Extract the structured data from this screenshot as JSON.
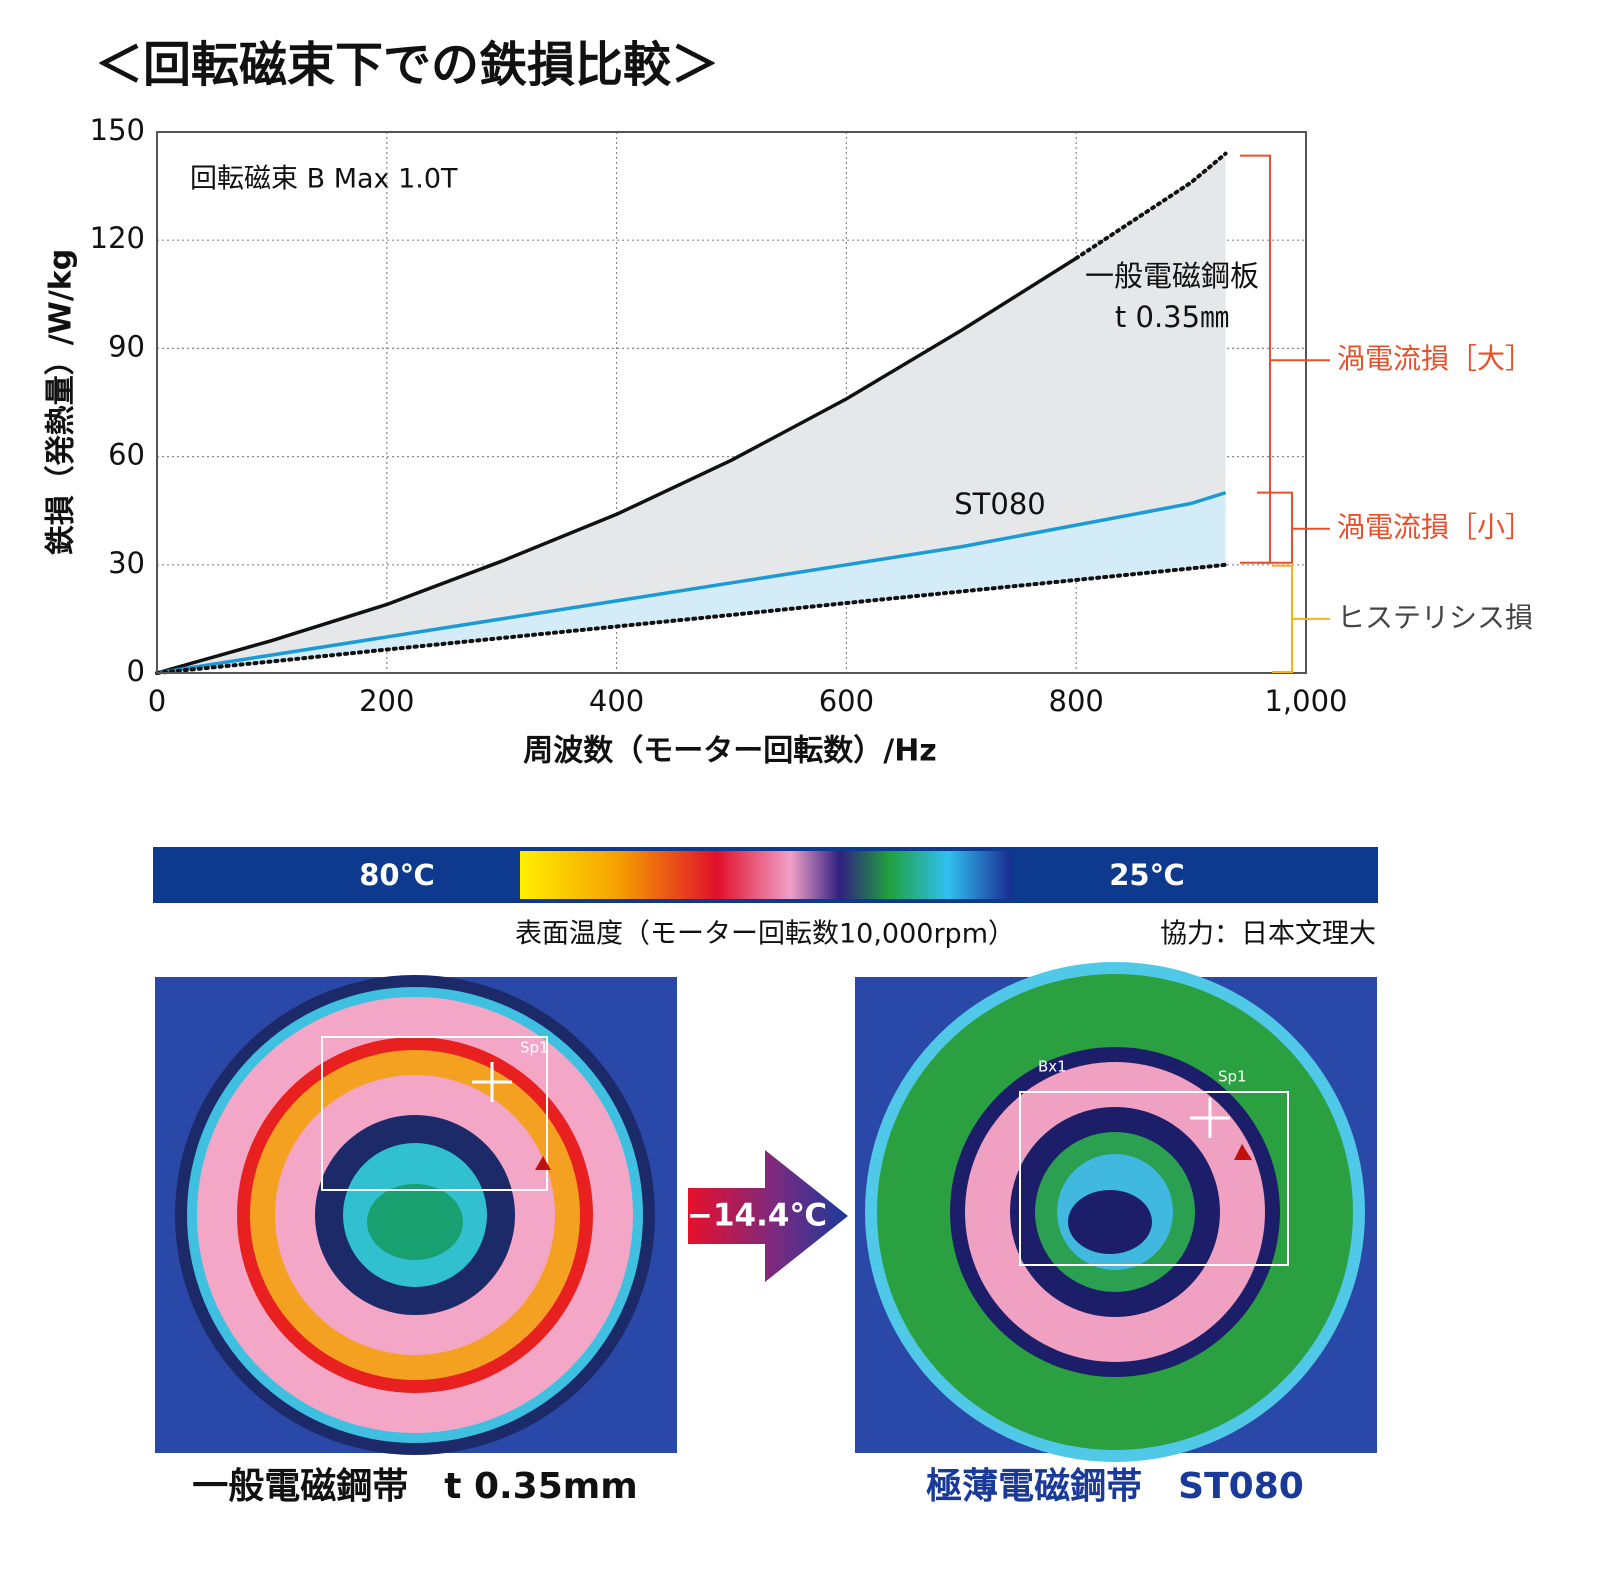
{
  "chart_data": {
    "type": "line",
    "title": "＜回転磁束下での鉄損比較＞",
    "x_label": "周波数（モーター回転数）/Hz",
    "y_label": "鉄損（発熱量）/W/kg",
    "condition": "回転磁束 B Max 1.0T",
    "x": [
      0,
      100,
      200,
      300,
      400,
      500,
      600,
      700,
      800,
      900,
      930
    ],
    "series": [
      {
        "name": "一般電磁鋼板",
        "thickness": "t 0.35㎜",
        "color": "#111111",
        "dashed_from": 800,
        "values": [
          0,
          9,
          19,
          31,
          44,
          59,
          76,
          95,
          115,
          136,
          144
        ]
      },
      {
        "name": "ST080",
        "color": "#1a9ad6",
        "values": [
          0,
          5,
          10,
          15,
          20,
          25,
          30,
          35,
          41,
          47,
          50
        ]
      },
      {
        "name": "ヒステリシス損",
        "color": "#111111",
        "dashed_from": 0,
        "values": [
          0,
          3.2,
          6.5,
          9.7,
          12.9,
          16.1,
          19.4,
          22.6,
          25.8,
          29,
          30
        ]
      }
    ],
    "brackets": {
      "large": "渦電流損［大］",
      "small": "渦電流損［小］"
    },
    "xlim": [
      0,
      1000
    ],
    "ylim": [
      0,
      150
    ],
    "xticks": [
      0,
      200,
      400,
      600,
      800,
      {
        "value": 1000,
        "label": "1,000"
      }
    ],
    "yticks": [
      0,
      30,
      60,
      90,
      120,
      150
    ],
    "grid": true
  },
  "thermal": {
    "scale_hot": "80℃",
    "scale_cold": "25℃",
    "caption": "表面温度（モーター回転数10,000rpm）",
    "credit": "協力：日本文理大",
    "difference": "−14.4℃",
    "left_label": "一般電磁鋼帯　t 0.35mm",
    "right_label": "極薄電磁鋼帯　ST080",
    "spot_label": "Sp1",
    "box_label": "Bx1"
  }
}
